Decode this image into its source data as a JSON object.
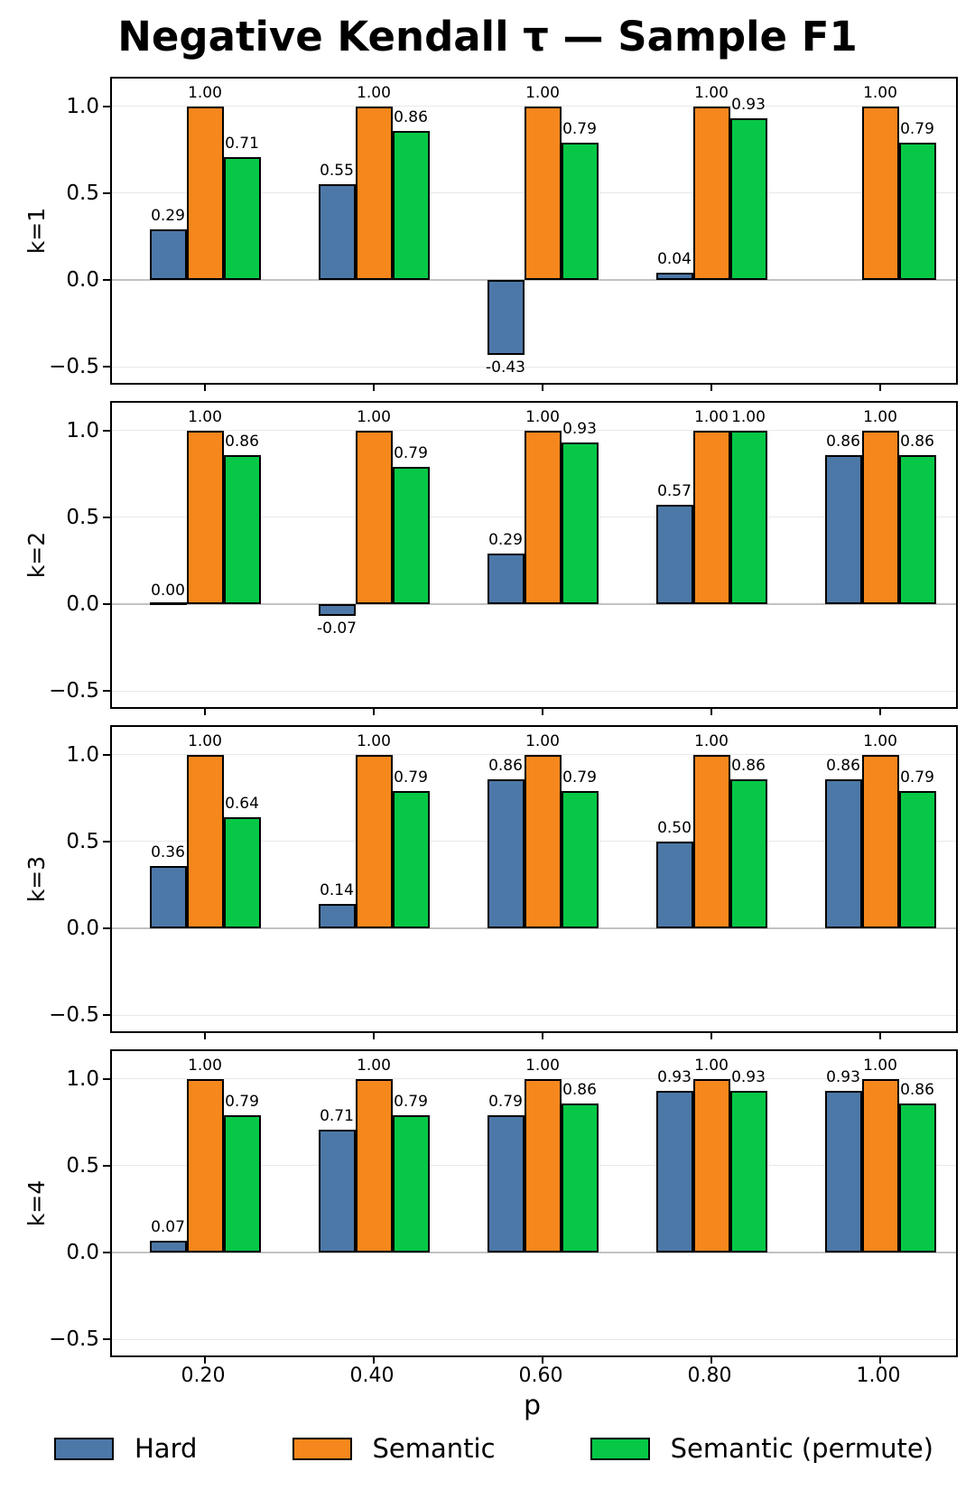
{
  "chart_data": {
    "type": "bar",
    "title": "Negative Kendall τ — Sample F1",
    "xlabel": "p",
    "categories": [
      "0.20",
      "0.40",
      "0.60",
      "0.80",
      "1.00"
    ],
    "yticks": [
      1.0,
      0.5,
      0.0,
      -0.5
    ],
    "ytick_labels": [
      "1.0",
      "0.5",
      "0.0",
      "−0.5"
    ],
    "ylim": [
      -0.593,
      1.16
    ],
    "grid": "horizontal",
    "legend_position": "bottom",
    "colors": {
      "hard": "#4C78A8",
      "semantic": "#F6871C",
      "permute": "#06C846",
      "bar_edge": "#000000",
      "grid": "#E8E8E8",
      "zero_line": "#C2C2C2"
    },
    "panels": [
      {
        "label": "k=1",
        "series": [
          {
            "name": "Hard",
            "values": [
              0.29,
              0.55,
              -0.43,
              0.04,
              null
            ]
          },
          {
            "name": "Semantic",
            "values": [
              1.0,
              1.0,
              1.0,
              1.0,
              1.0
            ]
          },
          {
            "name": "Semantic (permute)",
            "values": [
              0.71,
              0.86,
              0.79,
              0.93,
              0.79
            ]
          }
        ]
      },
      {
        "label": "k=2",
        "series": [
          {
            "name": "Hard",
            "values": [
              0.0,
              -0.07,
              0.29,
              0.57,
              0.86
            ]
          },
          {
            "name": "Semantic",
            "values": [
              1.0,
              1.0,
              1.0,
              1.0,
              1.0
            ]
          },
          {
            "name": "Semantic (permute)",
            "values": [
              0.86,
              0.79,
              0.93,
              1.0,
              0.86
            ]
          }
        ]
      },
      {
        "label": "k=3",
        "series": [
          {
            "name": "Hard",
            "values": [
              0.36,
              0.14,
              0.86,
              0.5,
              0.86
            ]
          },
          {
            "name": "Semantic",
            "values": [
              1.0,
              1.0,
              1.0,
              1.0,
              1.0
            ]
          },
          {
            "name": "Semantic (permute)",
            "values": [
              0.64,
              0.79,
              0.79,
              0.86,
              0.79
            ]
          }
        ]
      },
      {
        "label": "k=4",
        "series": [
          {
            "name": "Hard",
            "values": [
              0.07,
              0.71,
              0.79,
              0.93,
              0.93
            ]
          },
          {
            "name": "Semantic",
            "values": [
              1.0,
              1.0,
              1.0,
              1.0,
              1.0
            ]
          },
          {
            "name": "Semantic (permute)",
            "values": [
              0.79,
              0.79,
              0.86,
              0.93,
              0.86
            ]
          }
        ]
      }
    ],
    "legend": [
      {
        "label": "Hard",
        "color": "#4C78A8"
      },
      {
        "label": "Semantic",
        "color": "#F6871C"
      },
      {
        "label": "Semantic (permute)",
        "color": "#06C846"
      }
    ]
  }
}
